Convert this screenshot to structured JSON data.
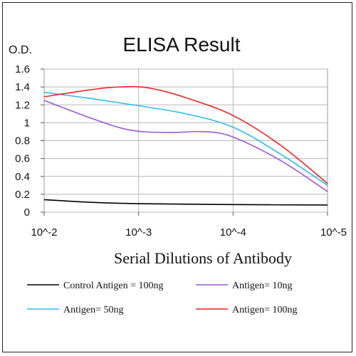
{
  "chart_data": {
    "type": "line",
    "title": "ELISA Result",
    "ylabel": "O.D.",
    "xlabel": "Serial Dilutions  of Antibody",
    "x_categories": [
      "10^-2",
      "10^-3",
      "10^-4",
      "10^-5"
    ],
    "x": [
      0,
      1,
      2,
      3
    ],
    "ylim": [
      0,
      1.6
    ],
    "y_ticks": [
      "0",
      "0.2",
      "0.4",
      "0.6",
      "0.8",
      "1",
      "1.2",
      "1.4",
      "1.6"
    ],
    "y_tick_values": [
      0,
      0.2,
      0.4,
      0.6,
      0.8,
      1.0,
      1.2,
      1.4,
      1.6
    ],
    "grid": true,
    "legend_position": "bottom",
    "series": [
      {
        "name": "Control Antigen = 100ng",
        "color": "#000000",
        "points": [
          [
            0,
            0.14
          ],
          [
            0.5,
            0.11
          ],
          [
            1,
            0.095
          ],
          [
            2,
            0.085
          ],
          [
            3,
            0.08
          ]
        ]
      },
      {
        "name": "Antigen= 10ng",
        "color": "#9b59d0",
        "points": [
          [
            0,
            1.25
          ],
          [
            0.5,
            1.05
          ],
          [
            0.9,
            0.92
          ],
          [
            1.3,
            0.89
          ],
          [
            1.7,
            0.9
          ],
          [
            2,
            0.84
          ],
          [
            2.5,
            0.58
          ],
          [
            3,
            0.23
          ]
        ]
      },
      {
        "name": "Antigen= 50ng",
        "color": "#2bbde8",
        "points": [
          [
            0,
            1.34
          ],
          [
            0.5,
            1.27
          ],
          [
            1,
            1.19
          ],
          [
            1.5,
            1.1
          ],
          [
            2,
            0.95
          ],
          [
            2.5,
            0.65
          ],
          [
            3,
            0.3
          ]
        ]
      },
      {
        "name": "Antigen= 100ng",
        "color": "#ee2222",
        "points": [
          [
            0,
            1.29
          ],
          [
            0.5,
            1.37
          ],
          [
            0.8,
            1.4
          ],
          [
            1.1,
            1.39
          ],
          [
            1.5,
            1.28
          ],
          [
            2,
            1.08
          ],
          [
            2.5,
            0.75
          ],
          [
            3,
            0.32
          ]
        ]
      }
    ]
  }
}
